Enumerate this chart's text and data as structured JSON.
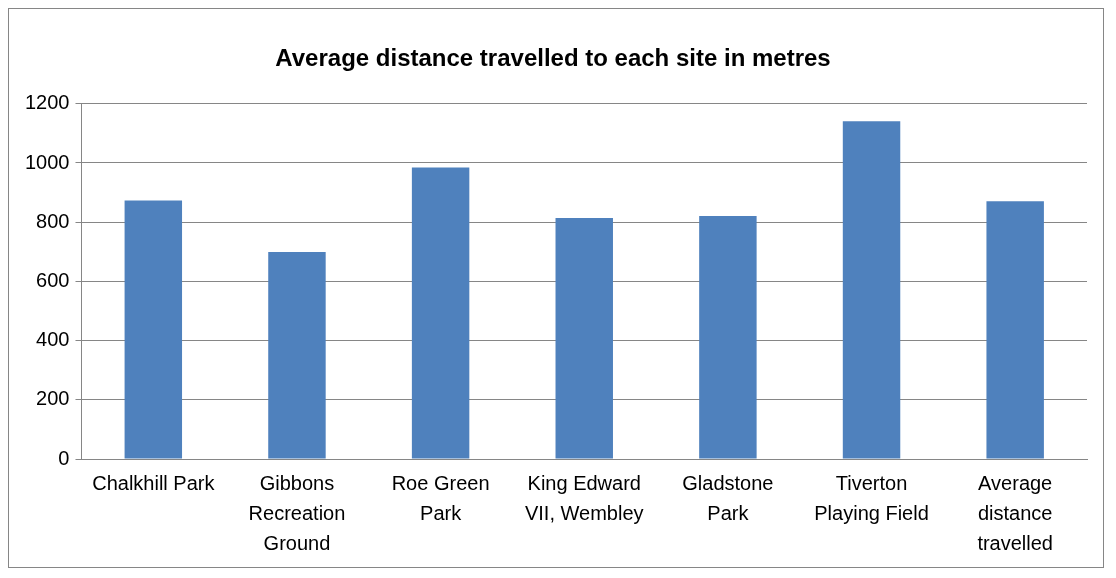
{
  "chart_data": {
    "type": "bar",
    "title": "Average distance travelled to each site in metres",
    "categories": [
      "Chalkhill Park",
      "Gibbons Recreation Ground",
      "Roe Green Park",
      "King Edward VII, Wembley",
      "Gladstone Park",
      "Tiverton Playing Field",
      "Average distance travelled"
    ],
    "values": [
      873,
      699,
      985,
      814,
      821,
      1141,
      871
    ],
    "color": "#4f81bd",
    "ylim": [
      0,
      1200
    ],
    "yticks": [
      0,
      200,
      400,
      600,
      800,
      1000,
      1200
    ],
    "grid": "y",
    "legend": false
  }
}
